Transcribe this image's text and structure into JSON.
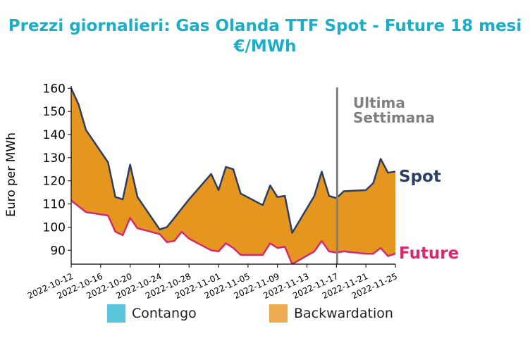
{
  "title": {
    "line1": "Prezzi giornalieri: Gas Olanda TTF Spot - Future 18 mesi",
    "line2": "€/MWh"
  },
  "legend": {
    "contango_label": "Contango",
    "backwardation_label": "Backwardation"
  },
  "colors": {
    "title": "#1aaec8",
    "spot": "#2d3e63",
    "future": "#d6286f",
    "backwardation": "#e4961f",
    "backwardation_legend": "#ecac4f",
    "contango": "#5bc7dd",
    "marker_line": "#808080",
    "annotation": "#7f7f7f"
  },
  "chart_data": {
    "type": "area",
    "ylabel": "Euro per MWh",
    "xlabel": "",
    "ylim": [
      84,
      161
    ],
    "yticks": [
      90,
      100,
      110,
      120,
      130,
      140,
      150,
      160
    ],
    "xlim": [
      "2022-10-12",
      "2022-11-25"
    ],
    "xtick_labels": [
      "2022-10-12",
      "2022-10-16",
      "2022-10-20",
      "2022-10-24",
      "2022-10-28",
      "2022-11-01",
      "2022-11-05",
      "2022-11-09",
      "2022-11-13",
      "2022-11-17",
      "2022-11-21",
      "2022-11-25"
    ],
    "grid": false,
    "series": [
      {
        "name": "Spot",
        "x": [
          "2022-10-12",
          "2022-10-13",
          "2022-10-14",
          "2022-10-17",
          "2022-10-18",
          "2022-10-19",
          "2022-10-20",
          "2022-10-21",
          "2022-10-24",
          "2022-10-25",
          "2022-10-26",
          "2022-10-27",
          "2022-10-28",
          "2022-10-31",
          "2022-11-01",
          "2022-11-02",
          "2022-11-03",
          "2022-11-04",
          "2022-11-07",
          "2022-11-08",
          "2022-11-09",
          "2022-11-10",
          "2022-11-11",
          "2022-11-14",
          "2022-11-15",
          "2022-11-16",
          "2022-11-17",
          "2022-11-18",
          "2022-11-21",
          "2022-11-22",
          "2022-11-23",
          "2022-11-24",
          "2022-11-25"
        ],
        "values": [
          160,
          153,
          142,
          128,
          113,
          112,
          127,
          113,
          99,
          100,
          104,
          108,
          112,
          123,
          116,
          126,
          125,
          114.5,
          109.5,
          118,
          113,
          113.5,
          97.5,
          113.5,
          124,
          113.5,
          112.5,
          115.5,
          116,
          119,
          129.5,
          123.5,
          124
        ]
      },
      {
        "name": "Future",
        "x": [
          "2022-10-12",
          "2022-10-13",
          "2022-10-14",
          "2022-10-17",
          "2022-10-18",
          "2022-10-19",
          "2022-10-20",
          "2022-10-21",
          "2022-10-24",
          "2022-10-25",
          "2022-10-26",
          "2022-10-27",
          "2022-10-28",
          "2022-10-31",
          "2022-11-01",
          "2022-11-02",
          "2022-11-03",
          "2022-11-04",
          "2022-11-07",
          "2022-11-08",
          "2022-11-09",
          "2022-11-10",
          "2022-11-11",
          "2022-11-14",
          "2022-11-15",
          "2022-11-16",
          "2022-11-17",
          "2022-11-18",
          "2022-11-21",
          "2022-11-22",
          "2022-11-23",
          "2022-11-24",
          "2022-11-25"
        ],
        "values": [
          111.5,
          109,
          106.5,
          105,
          98,
          96.5,
          104,
          99.5,
          97,
          93.5,
          94,
          98,
          95,
          90,
          89.5,
          93,
          91,
          88,
          88,
          93,
          91,
          91.5,
          84,
          89.5,
          94,
          89.5,
          89,
          89.5,
          88.5,
          88.5,
          91,
          87.5,
          88.5
        ]
      }
    ],
    "fill_between": "Backwardation",
    "annotations": [
      {
        "text_line1": "Ultima",
        "text_line2": "Settimana",
        "x": "2022-11-17"
      }
    ],
    "series_labels": {
      "spot": "Spot",
      "future": "Future"
    }
  }
}
